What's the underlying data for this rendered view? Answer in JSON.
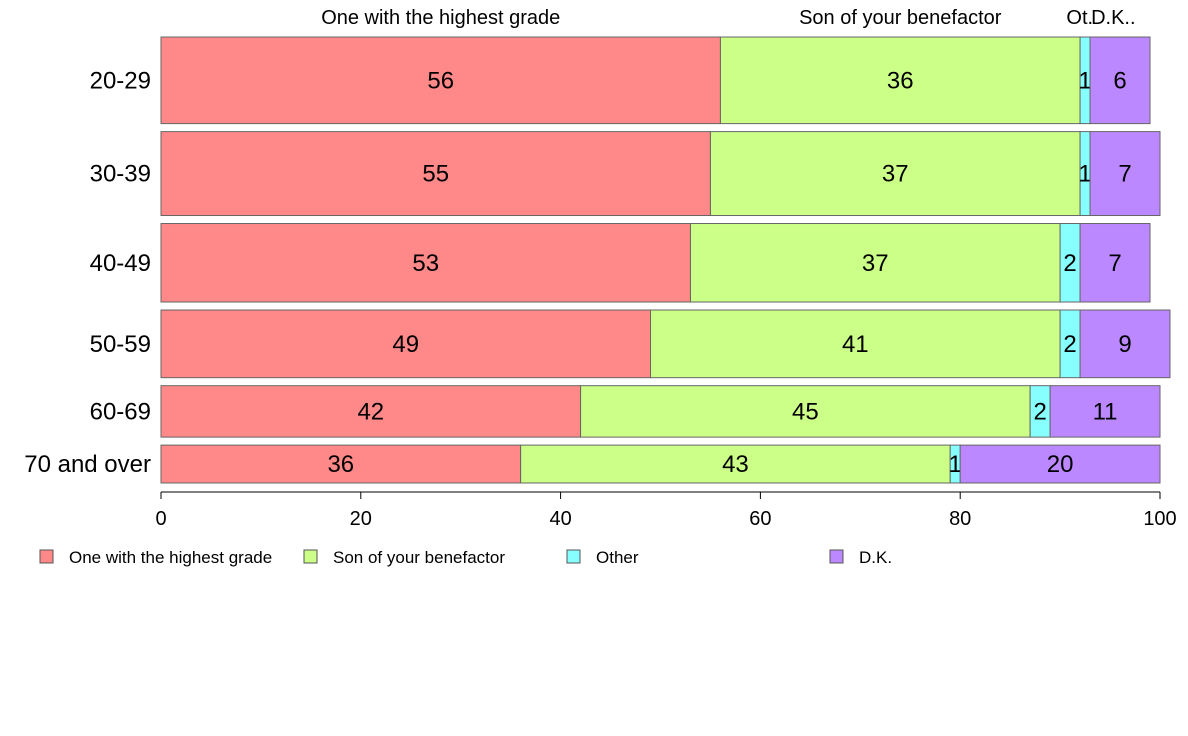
{
  "chart_data": {
    "type": "bar",
    "orientation": "horizontal",
    "stacked": true,
    "categories": [
      "20-29",
      "30-39",
      "40-49",
      "50-59",
      "60-69",
      "70 and over"
    ],
    "series": [
      {
        "name": "One with the highest grade",
        "color": "#FF8888",
        "values": [
          56,
          55,
          53,
          49,
          42,
          36
        ]
      },
      {
        "name": "Son of your benefactor",
        "color": "#CCFF88",
        "values": [
          36,
          37,
          37,
          41,
          45,
          43
        ]
      },
      {
        "name": "Other",
        "color": "#88FFFF",
        "values": [
          1,
          1,
          2,
          2,
          2,
          1
        ]
      },
      {
        "name": "D.K.",
        "color": "#BB88FF",
        "values": [
          6,
          7,
          7,
          9,
          11,
          20
        ]
      }
    ],
    "top_labels": [
      "One with the highest grade",
      "Son of your benefactor",
      "Ot.",
      "D.K.."
    ],
    "xlim": [
      0,
      100
    ],
    "xticks": [
      "0",
      "20",
      "40",
      "60",
      "80",
      "100"
    ],
    "row_weights": [
      3.2,
      3.1,
      2.9,
      2.5,
      1.9,
      1.4
    ],
    "grid": false,
    "legend_position": "bottom"
  }
}
